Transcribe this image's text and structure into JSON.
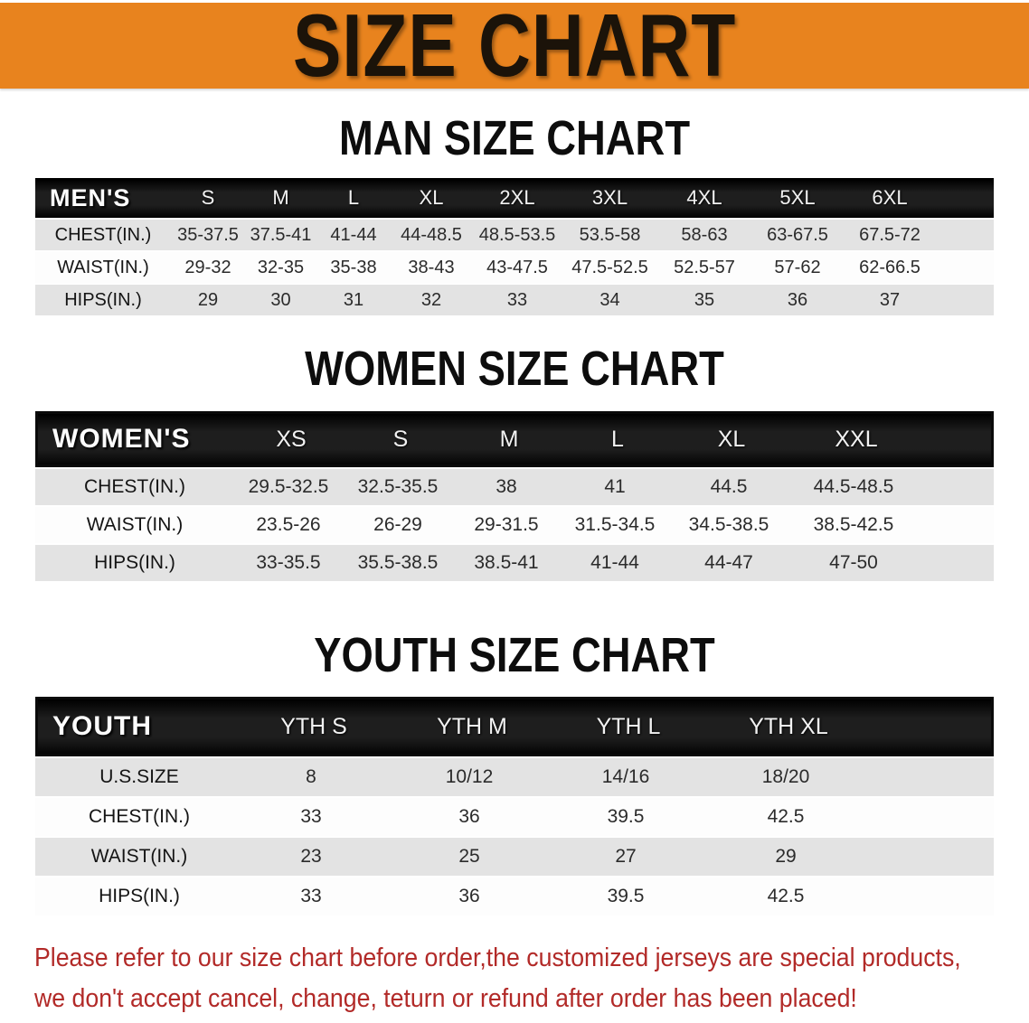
{
  "banner": {
    "title": "SIZE CHART",
    "bg_color": "#E8831E",
    "text_color": "#1B1309"
  },
  "colors": {
    "table_header_bg": "#1E1E1E",
    "row_shade": "#E3E3E3",
    "row_plain": "#FDFDFD",
    "footer_text": "#B22A28"
  },
  "sections": [
    {
      "title": "MAN SIZE CHART",
      "table": {
        "header_label": "MEN'S",
        "columns": [
          "S",
          "M",
          "L",
          "XL",
          "2XL",
          "3XL",
          "4XL",
          "5XL",
          "6XL"
        ],
        "rows": [
          {
            "label": "CHEST(IN.)",
            "values": [
              "35-37.5",
              "37.5-41",
              "41-44",
              "44-48.5",
              "48.5-53.5",
              "53.5-58",
              "58-63",
              "63-67.5",
              "67.5-72"
            ]
          },
          {
            "label": "WAIST(IN.)",
            "values": [
              "29-32",
              "32-35",
              "35-38",
              "38-43",
              "43-47.5",
              "47.5-52.5",
              "52.5-57",
              "57-62",
              "62-66.5"
            ]
          },
          {
            "label": "HIPS(IN.)",
            "values": [
              "29",
              "30",
              "31",
              "32",
              "33",
              "34",
              "35",
              "36",
              "37"
            ]
          }
        ]
      }
    },
    {
      "title": "WOMEN SIZE CHART",
      "table": {
        "header_label": "WOMEN'S",
        "columns": [
          "XS",
          "S",
          "M",
          "L",
          "XL",
          "XXL"
        ],
        "rows": [
          {
            "label": "CHEST(IN.)",
            "values": [
              "29.5-32.5",
              "32.5-35.5",
              "38",
              "41",
              "44.5",
              "44.5-48.5"
            ]
          },
          {
            "label": "WAIST(IN.)",
            "values": [
              "23.5-26",
              "26-29",
              "29-31.5",
              "31.5-34.5",
              "34.5-38.5",
              "38.5-42.5"
            ]
          },
          {
            "label": "HIPS(IN.)",
            "values": [
              "33-35.5",
              "35.5-38.5",
              "38.5-41",
              "41-44",
              "44-47",
              "47-50"
            ]
          }
        ]
      }
    },
    {
      "title": "YOUTH SIZE CHART",
      "table": {
        "header_label": "YOUTH",
        "columns": [
          "YTH S",
          "YTH M",
          "YTH L",
          "YTH XL"
        ],
        "rows": [
          {
            "label": "U.S.SIZE",
            "values": [
              "8",
              "10/12",
              "14/16",
              "18/20"
            ]
          },
          {
            "label": "CHEST(IN.)",
            "values": [
              "33",
              "36",
              "39.5",
              "42.5"
            ]
          },
          {
            "label": "WAIST(IN.)",
            "values": [
              "23",
              "25",
              "27",
              "29"
            ]
          },
          {
            "label": "HIPS(IN.)",
            "values": [
              "33",
              "36",
              "39.5",
              "42.5"
            ]
          }
        ]
      }
    }
  ],
  "footer_note": {
    "text": "Please refer to our size chart before order,the customized jerseys are special products,\nwe don't accept cancel, change, teturn or refund after order has been placed!"
  }
}
